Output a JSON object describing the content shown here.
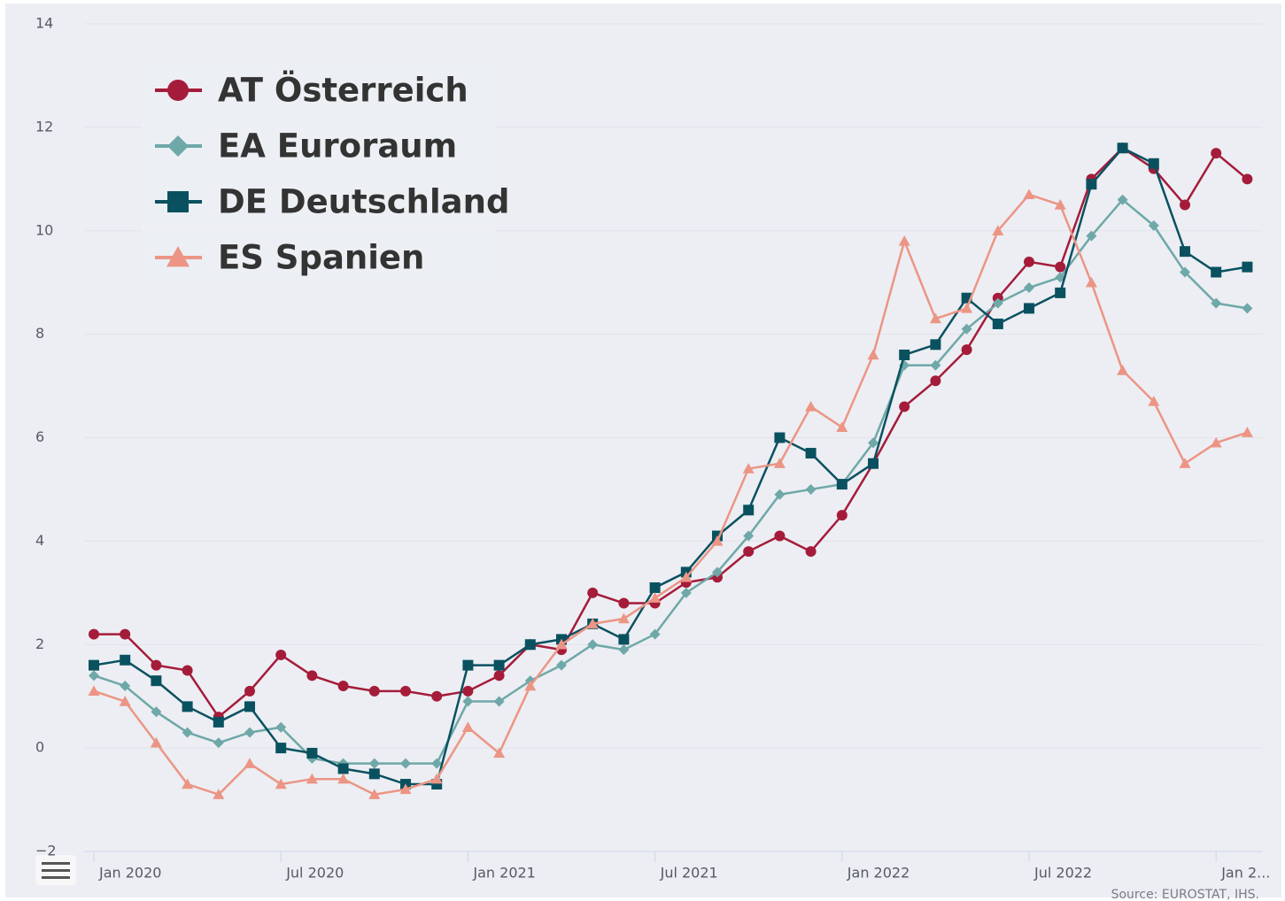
{
  "chart_data": {
    "type": "line",
    "categories": [
      "Jan 2020",
      null,
      null,
      null,
      null,
      null,
      "Jul 2020",
      null,
      null,
      null,
      null,
      null,
      "Jan 2021",
      null,
      null,
      null,
      null,
      null,
      "Jul 2021",
      null,
      null,
      null,
      null,
      null,
      "Jan 2022",
      null,
      null,
      null,
      null,
      null,
      "Jul 2022",
      null,
      null,
      null,
      null,
      null,
      "Jan 2...",
      null
    ],
    "series": [
      {
        "name": "AT Österreich",
        "color": "#a51c3a",
        "marker": "circle",
        "values": [
          2.2,
          2.2,
          1.6,
          1.5,
          0.6,
          1.1,
          1.8,
          1.4,
          1.2,
          1.1,
          1.1,
          1.0,
          1.1,
          1.4,
          2.0,
          1.9,
          3.0,
          2.8,
          2.8,
          3.2,
          3.3,
          3.8,
          4.1,
          3.8,
          4.5,
          5.5,
          6.6,
          7.1,
          7.7,
          8.7,
          9.4,
          9.3,
          11.0,
          11.6,
          11.2,
          10.5,
          11.5,
          11.0
        ]
      },
      {
        "name": "EA Euroraum",
        "color": "#6fa8a8",
        "marker": "diamond",
        "values": [
          1.4,
          1.2,
          0.7,
          0.3,
          0.1,
          0.3,
          0.4,
          -0.2,
          -0.3,
          -0.3,
          -0.3,
          -0.3,
          0.9,
          0.9,
          1.3,
          1.6,
          2.0,
          1.9,
          2.2,
          3.0,
          3.4,
          4.1,
          4.9,
          5.0,
          5.1,
          5.9,
          7.4,
          7.4,
          8.1,
          8.6,
          8.9,
          9.1,
          9.9,
          10.6,
          10.1,
          9.2,
          8.6,
          8.5
        ]
      },
      {
        "name": "DE Deutschland",
        "color": "#0a5160",
        "marker": "square",
        "values": [
          1.6,
          1.7,
          1.3,
          0.8,
          0.5,
          0.8,
          0.0,
          -0.1,
          -0.4,
          -0.5,
          -0.7,
          -0.7,
          1.6,
          1.6,
          2.0,
          2.1,
          2.4,
          2.1,
          3.1,
          3.4,
          4.1,
          4.6,
          6.0,
          5.7,
          5.1,
          5.5,
          7.6,
          7.8,
          8.7,
          8.2,
          8.5,
          8.8,
          10.9,
          11.6,
          11.3,
          9.6,
          9.2,
          9.3
        ]
      },
      {
        "name": "ES Spanien",
        "color": "#ec9585",
        "marker": "triangle",
        "values": [
          1.1,
          0.9,
          0.1,
          -0.7,
          -0.9,
          -0.3,
          -0.7,
          -0.6,
          -0.6,
          -0.9,
          -0.8,
          -0.6,
          0.4,
          -0.1,
          1.2,
          2.0,
          2.4,
          2.5,
          2.9,
          3.3,
          4.0,
          5.4,
          5.5,
          6.6,
          6.2,
          7.6,
          9.8,
          8.3,
          8.5,
          10.0,
          10.7,
          10.5,
          9.0,
          7.3,
          6.7,
          5.5,
          5.9,
          6.1
        ]
      }
    ],
    "ylim": [
      -2,
      14
    ],
    "yticks": [
      {
        "value": -2,
        "label": "−2"
      },
      0,
      2,
      4,
      6,
      8,
      10,
      12,
      14
    ],
    "grid": true,
    "legend": "top-left",
    "source": "Source: EUROSTAT, IHS."
  }
}
